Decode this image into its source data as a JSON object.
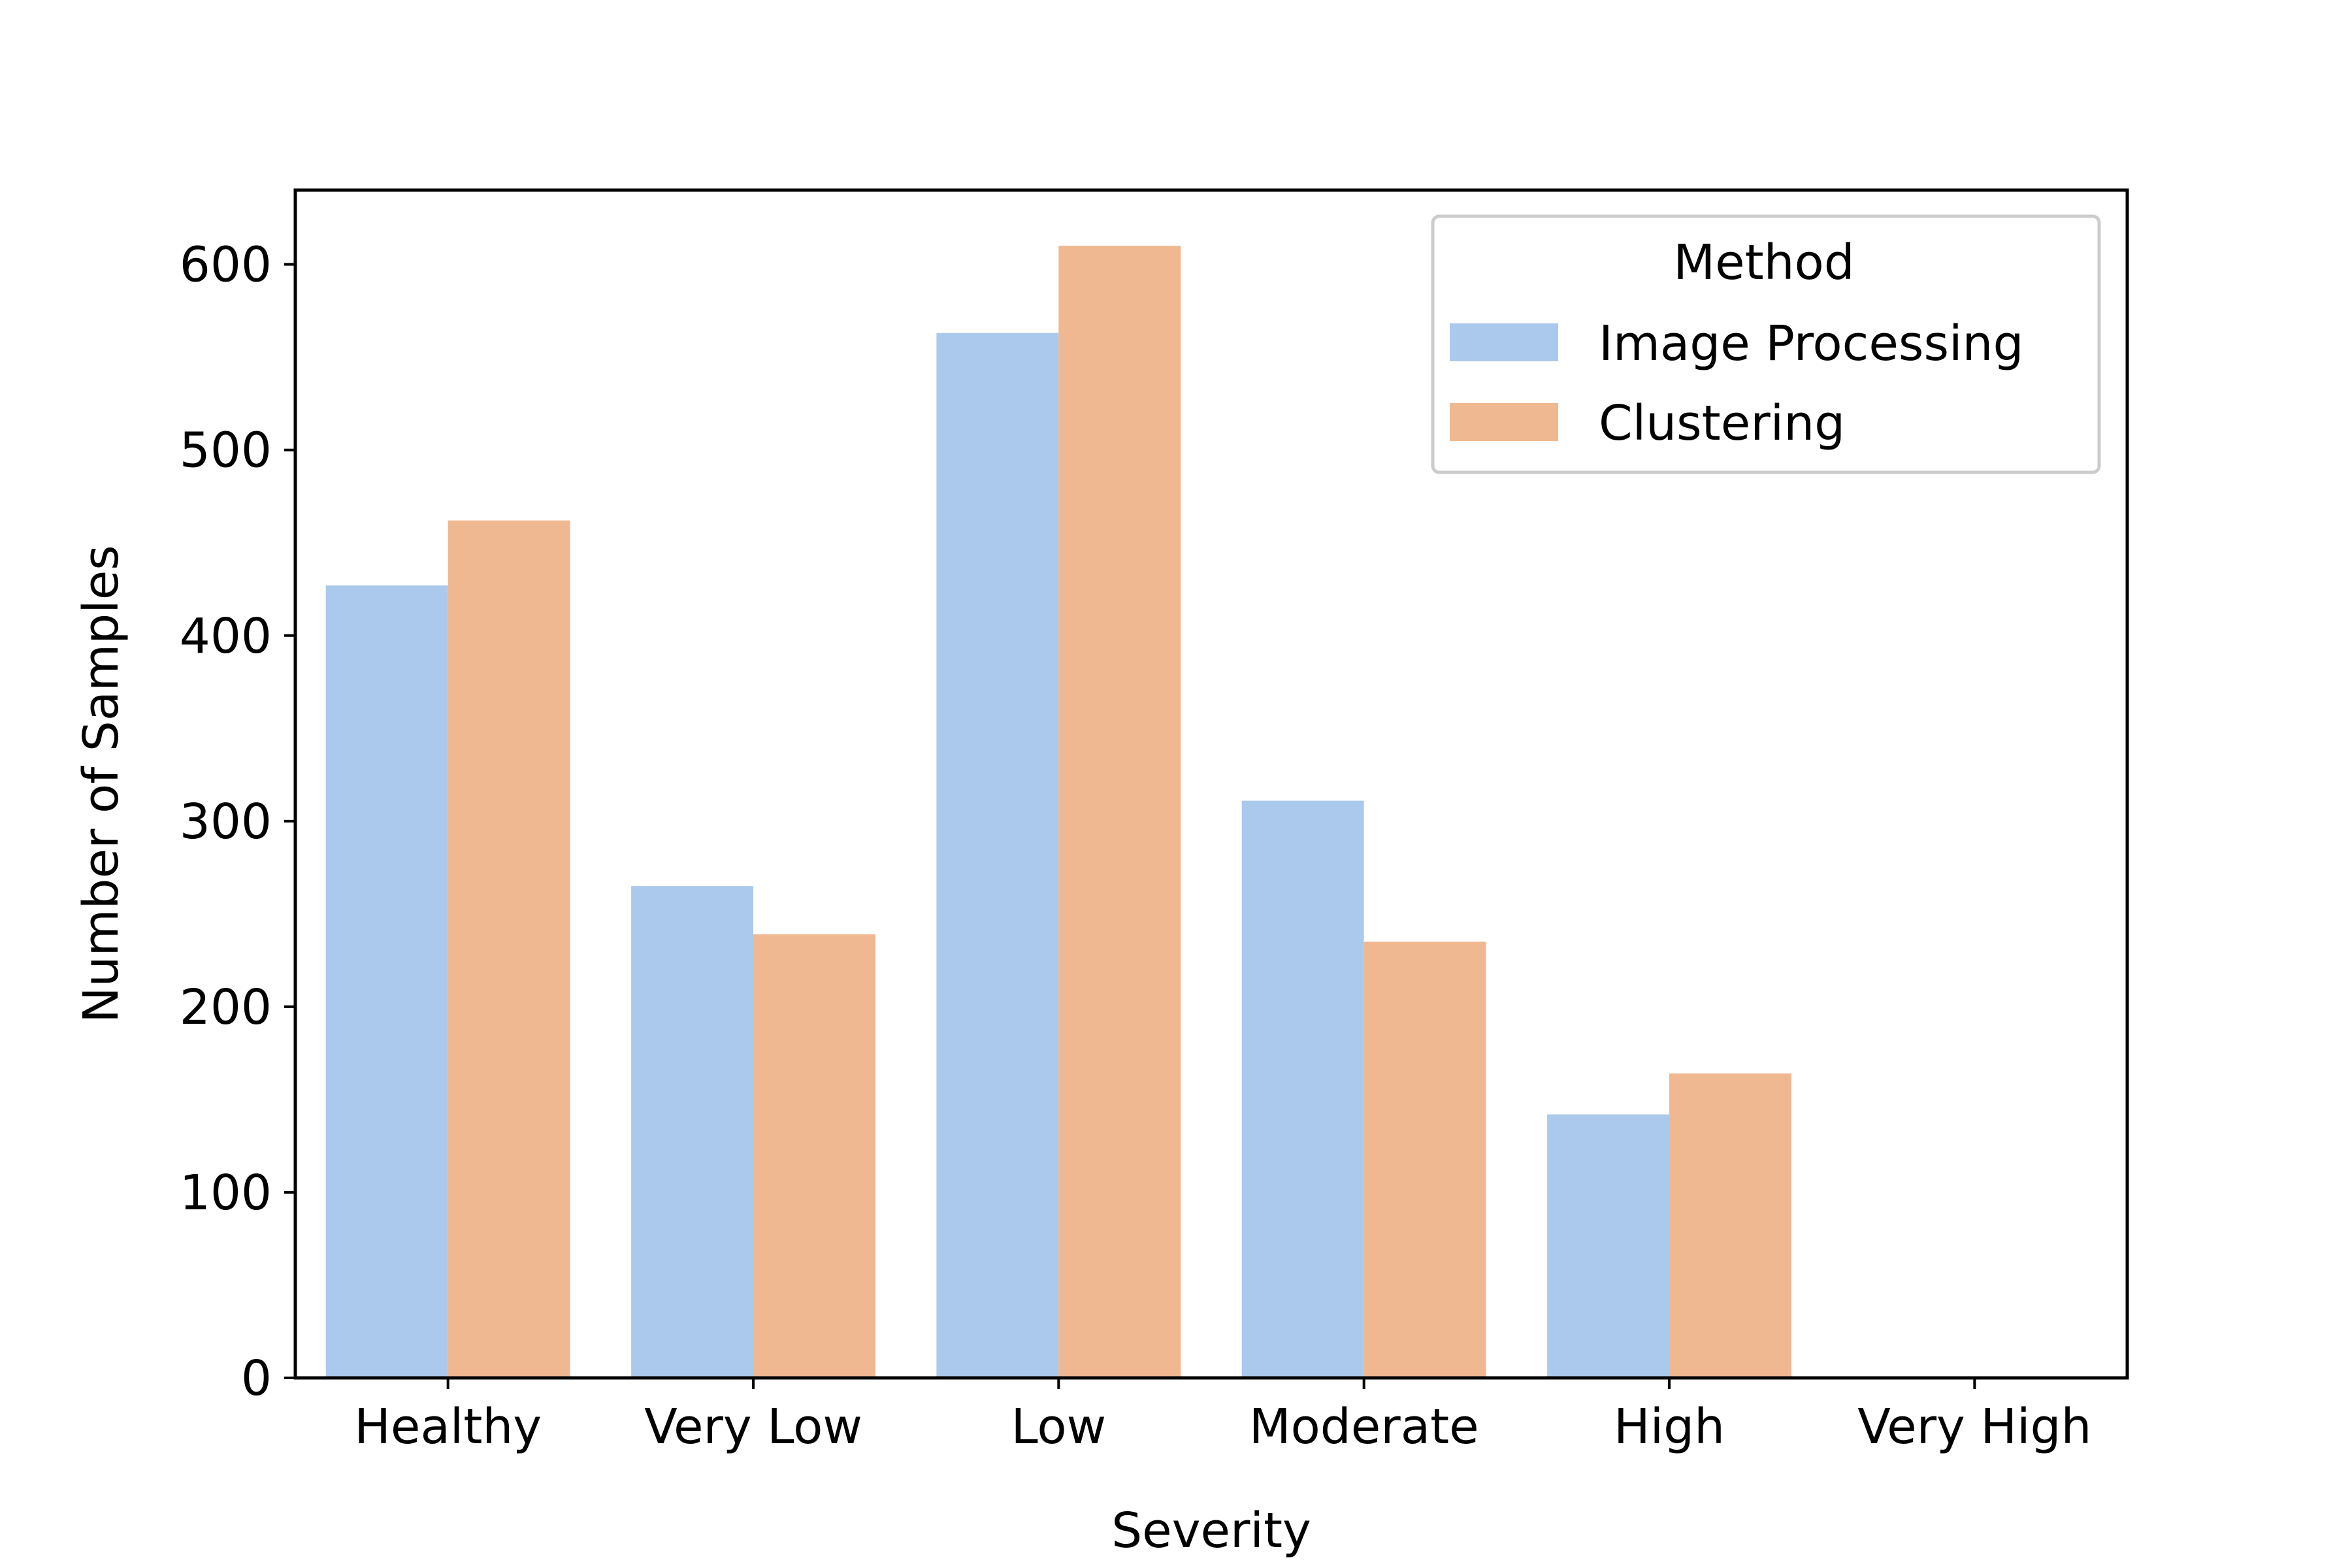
{
  "chart_data": {
    "type": "bar",
    "title": "",
    "xlabel": "Severity",
    "ylabel": "Number of Samples",
    "categories": [
      "Healthy",
      "Very Low",
      "Low",
      "Moderate",
      "High",
      "Very High"
    ],
    "series": [
      {
        "name": "Image Processing",
        "color": "#abc9ec",
        "values": [
          427,
          265,
          563,
          311,
          142,
          0
        ]
      },
      {
        "name": "Clustering",
        "color": "#f0b891",
        "values": [
          462,
          239,
          610,
          235,
          164,
          0
        ]
      }
    ],
    "ylim": [
      0,
      640
    ],
    "yticks": [
      0,
      100,
      200,
      300,
      400,
      500,
      600
    ],
    "grid": false,
    "legend": {
      "title": "Method",
      "position": "top-right"
    }
  }
}
